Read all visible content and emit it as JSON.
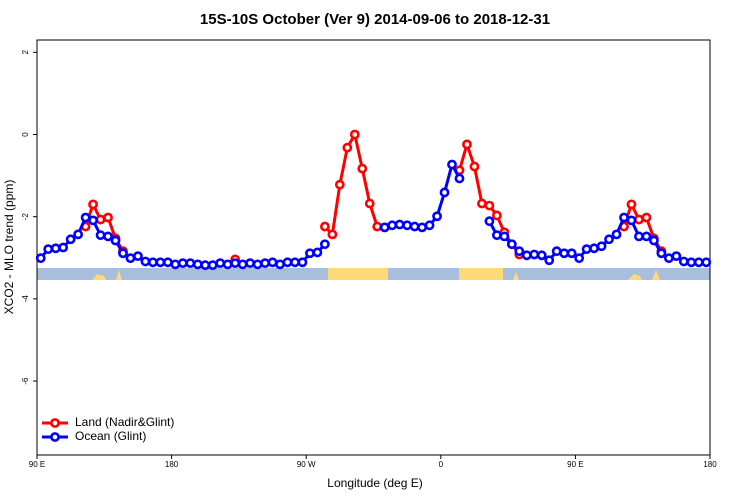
{
  "chart_data": {
    "type": "line",
    "title": "15S-10S October (Ver 9)   2014-09-06 to 2018-12-31",
    "x_label": "Longitude (deg E)",
    "y_label": "XCO2 - MLO trend (ppm)",
    "x": [
      92.5,
      97.5,
      102.5,
      107.5,
      112.5,
      117.5,
      122.5,
      127.5,
      132.5,
      137.5,
      142.5,
      147.5,
      152.5,
      157.5,
      162.5,
      167.5,
      172.5,
      177.5,
      182.5,
      187.5,
      192.5,
      197.5,
      202.5,
      207.5,
      212.5,
      217.5,
      222.5,
      227.5,
      232.5,
      237.5,
      242.5,
      247.5,
      252.5,
      257.5,
      262.5,
      267.5,
      272.5,
      277.5,
      282.5,
      287.5,
      292.5,
      297.5,
      302.5,
      307.5,
      312.5,
      317.5,
      322.5,
      327.5,
      332.5,
      337.5,
      342.5,
      347.5,
      352.5,
      357.5,
      362.5,
      367.5,
      372.5,
      377.5,
      382.5,
      387.5,
      392.5,
      397.5,
      402.5,
      407.5,
      412.5,
      417.5,
      422.5,
      427.5,
      432.5,
      437.5,
      442.5,
      447.5,
      452.5,
      457.5,
      462.5,
      467.5,
      472.5,
      477.5,
      482.5,
      487.5,
      492.5,
      497.5,
      502.5,
      507.5,
      512.5,
      517.5,
      522.5,
      527.5,
      532.5,
      537.5
    ],
    "series": [
      {
        "name": "Land (Nadir&Glint)",
        "color": "#ff0000",
        "values": [
          null,
          null,
          null,
          null,
          null,
          null,
          -2.24,
          -1.7,
          -2.07,
          -2.02,
          -2.53,
          -2.84,
          null,
          null,
          null,
          null,
          null,
          null,
          null,
          null,
          null,
          null,
          null,
          null,
          null,
          null,
          -3.04,
          null,
          null,
          null,
          null,
          null,
          null,
          null,
          null,
          null,
          null,
          null,
          -2.24,
          -2.43,
          -1.22,
          -0.32,
          0.0,
          -0.83,
          -1.68,
          -2.24,
          -2.26,
          null,
          null,
          null,
          null,
          null,
          null,
          null,
          null,
          null,
          -0.87,
          -0.24,
          -0.78,
          -1.68,
          -1.73,
          -1.97,
          -2.38,
          -2.67,
          -2.92,
          null,
          null,
          null,
          null,
          null,
          null,
          null,
          null,
          null,
          null,
          null,
          null,
          null,
          -2.24,
          -1.7,
          -2.07,
          -2.02,
          -2.53,
          -2.84,
          null,
          null,
          null,
          null,
          null,
          null
        ]
      },
      {
        "name": "Ocean (Glint)",
        "color": "#0000ff",
        "values": [
          -3.01,
          -2.79,
          -2.77,
          -2.75,
          -2.55,
          -2.43,
          -2.02,
          -2.09,
          -2.45,
          -2.48,
          -2.58,
          -2.89,
          -3.01,
          -2.96,
          -3.09,
          -3.11,
          -3.11,
          -3.11,
          -3.16,
          -3.13,
          -3.13,
          -3.16,
          -3.18,
          -3.18,
          -3.13,
          -3.16,
          -3.13,
          -3.16,
          -3.13,
          -3.16,
          -3.13,
          -3.11,
          -3.16,
          -3.11,
          -3.11,
          -3.11,
          -2.89,
          -2.87,
          -2.67,
          null,
          null,
          null,
          null,
          null,
          null,
          null,
          -2.26,
          -2.21,
          -2.19,
          -2.21,
          -2.24,
          -2.26,
          -2.21,
          -1.99,
          -1.41,
          -0.73,
          -1.07,
          null,
          null,
          null,
          -2.11,
          -2.45,
          -2.48,
          -2.67,
          -2.84,
          -2.94,
          -2.92,
          -2.94,
          -3.06,
          -2.84,
          -2.89,
          -2.89,
          -3.01,
          -2.79,
          -2.77,
          -2.72,
          -2.55,
          -2.43,
          -2.02,
          -2.09,
          -2.48,
          -2.48,
          -2.58,
          -2.89,
          -3.01,
          -2.96,
          -3.09,
          -3.11,
          -3.11,
          -3.11
        ]
      }
    ],
    "xlim": [
      90,
      540
    ],
    "xticks": [
      {
        "value": 90,
        "label": "90 E"
      },
      180,
      {
        "value": 270,
        "label": "90 W"
      },
      {
        "value": 360,
        "label": "0"
      },
      {
        "value": 450,
        "label": "90 E"
      },
      {
        "value": 540,
        "label": "180"
      }
    ],
    "ylim": [
      -7.8,
      2.3
    ],
    "yticks": [
      2,
      0,
      -2,
      -4,
      -6
    ],
    "legend": "bottomleft"
  }
}
